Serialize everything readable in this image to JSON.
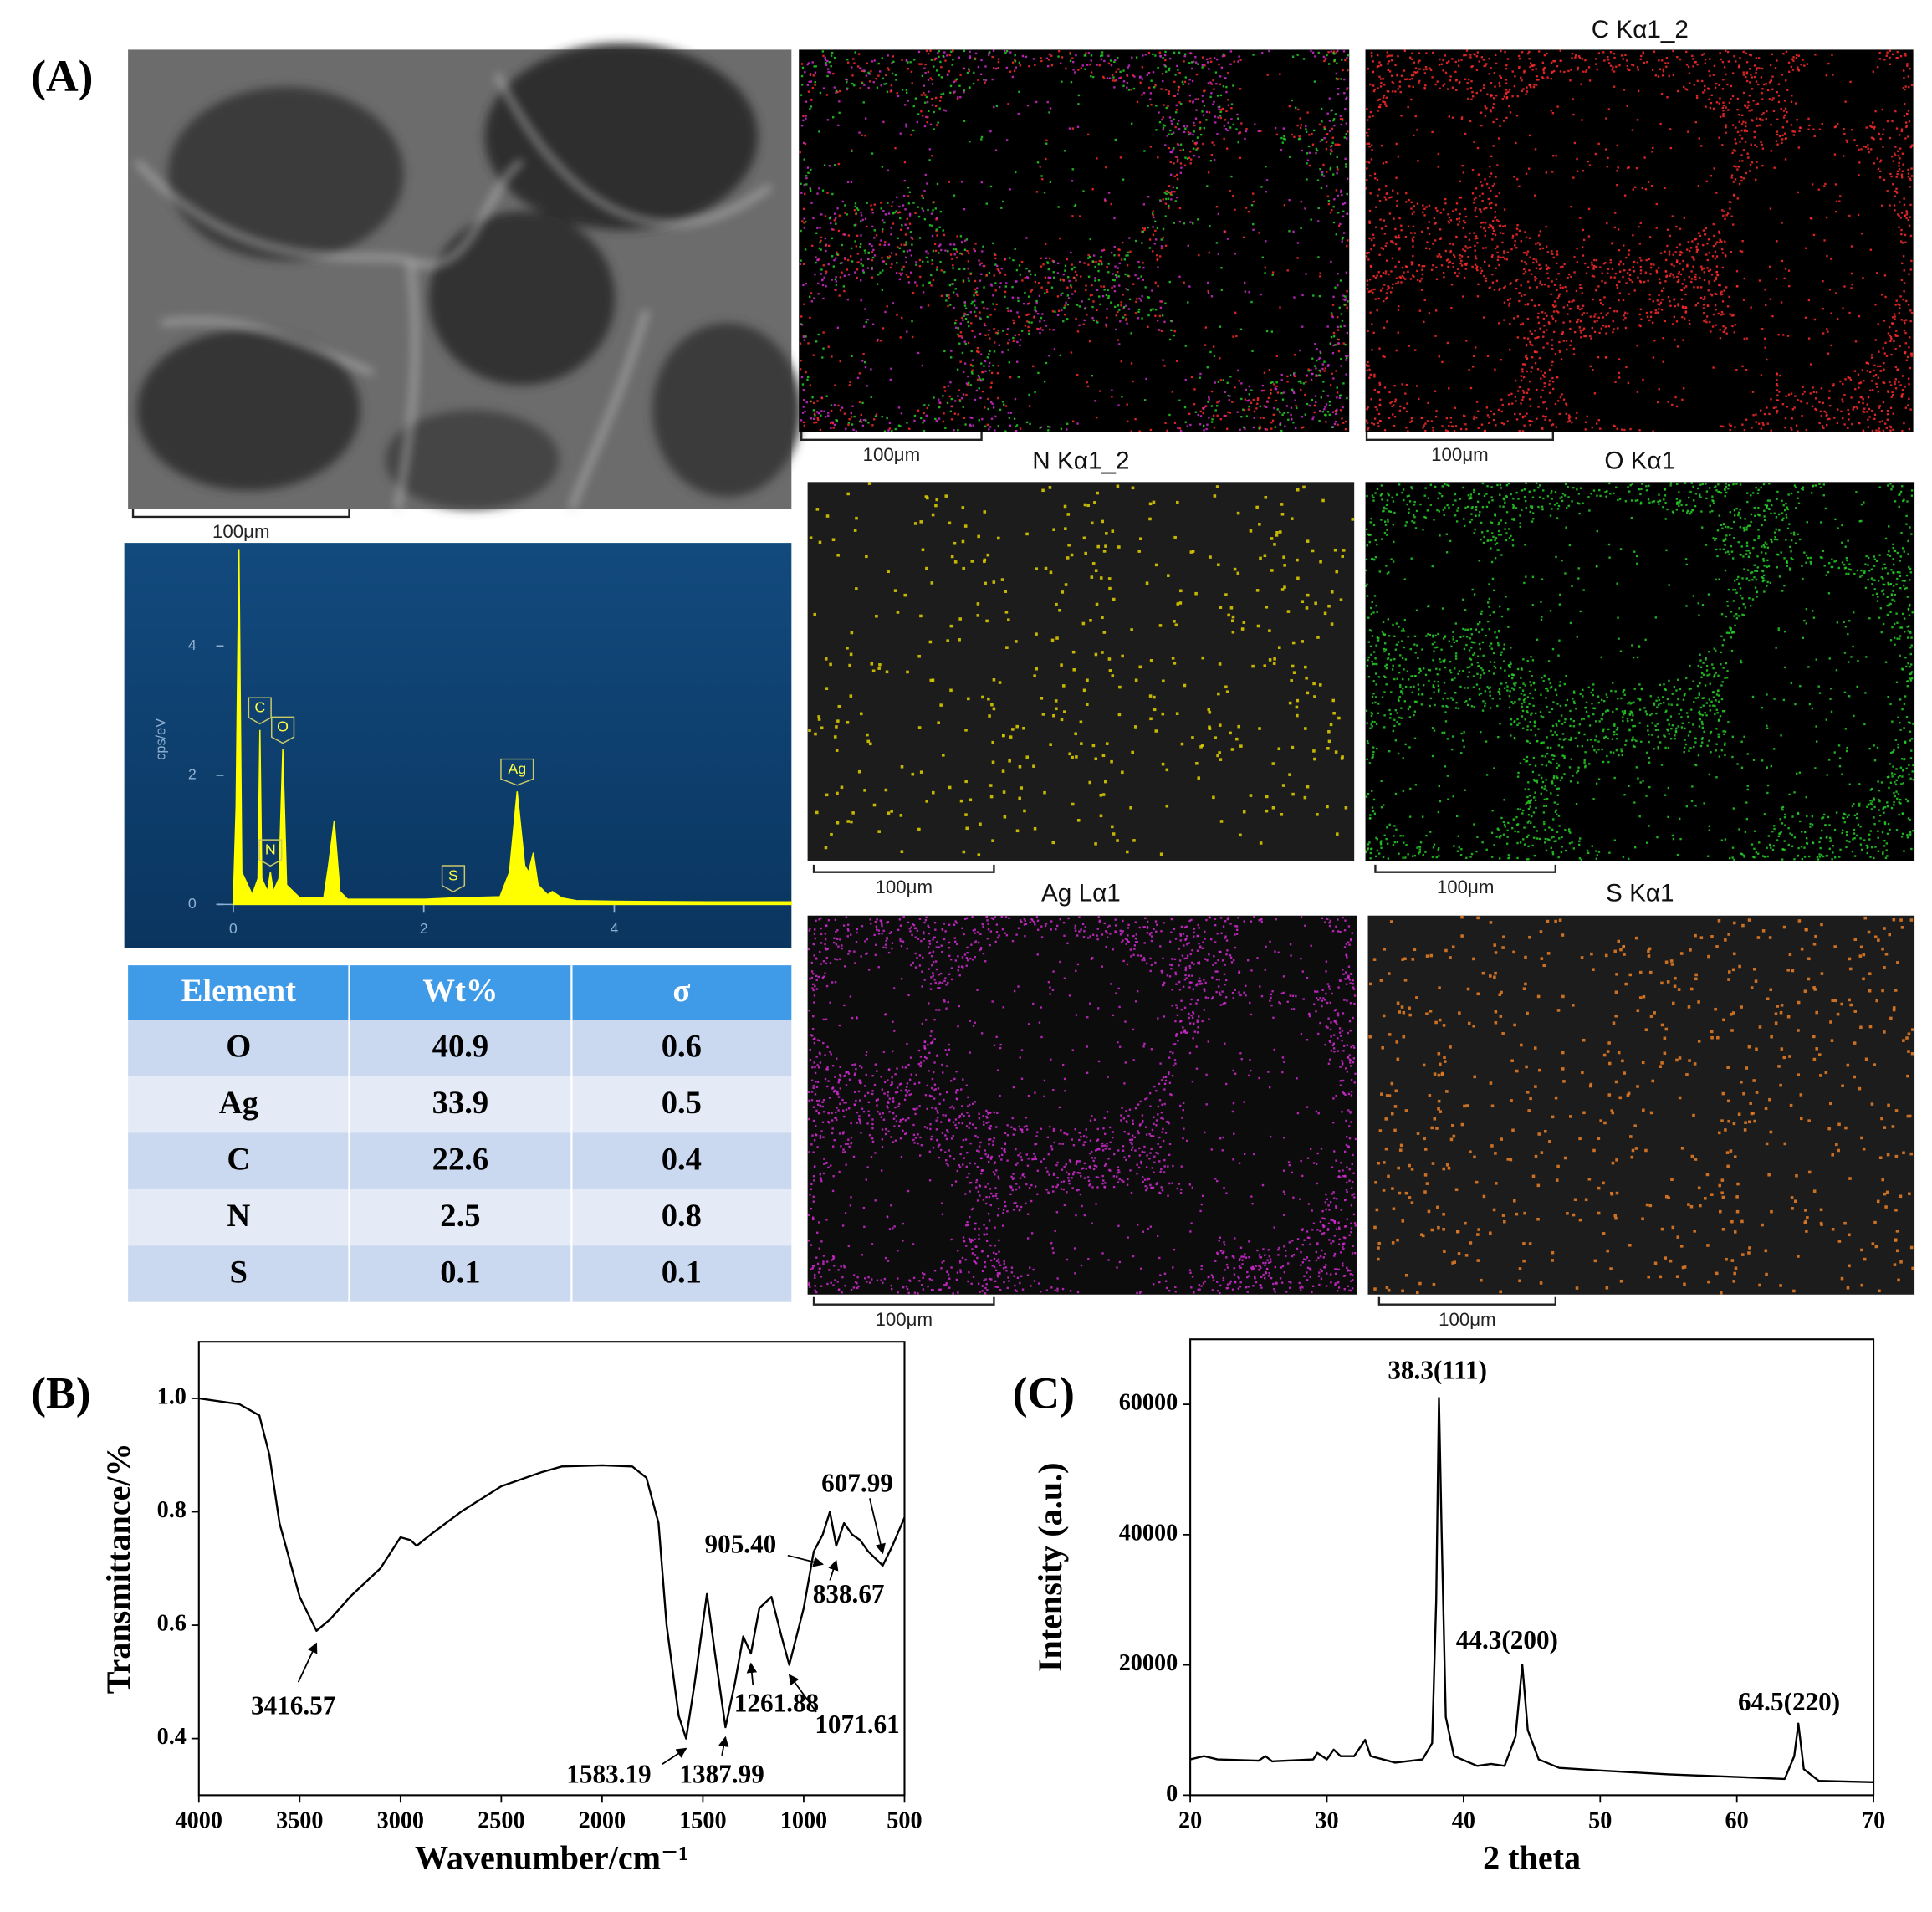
{
  "panel_labels": [
    "(A)",
    "(B)",
    "(C)"
  ],
  "sem": {
    "scale_bar": "100μm"
  },
  "maps": [
    {
      "scale_bar": "100μm"
    },
    {
      "title": "C Kα1_2",
      "color": "#ff2a2a",
      "scale_bar": "100μm"
    },
    {
      "title": "N Kα1_2",
      "color": "#d8c800",
      "scale_bar": "100μm"
    },
    {
      "title": "O Kα1",
      "color": "#26d026",
      "scale_bar": "100μm"
    },
    {
      "title": "Ag Lα1",
      "color": "#d22ad2",
      "scale_bar": "100μm"
    },
    {
      "title": "S Kα1",
      "color": "#e07a26",
      "scale_bar": "100μm"
    }
  ],
  "table": {
    "columns": [
      "Element",
      "Wt%",
      "σ"
    ],
    "rows": [
      [
        "O",
        40.9,
        0.6
      ],
      [
        "Ag",
        33.9,
        0.5
      ],
      [
        "C",
        22.6,
        0.4
      ],
      [
        "N",
        2.5,
        0.8
      ],
      [
        "S",
        0.1,
        0.1
      ]
    ]
  },
  "chart_data": [
    {
      "type": "area",
      "y_label": "cps/eV",
      "x": [
        0,
        0.03,
        0.06,
        0.09,
        0.2,
        0.26,
        0.28,
        0.3,
        0.36,
        0.39,
        0.42,
        0.48,
        0.52,
        0.56,
        0.7,
        0.95,
        1.0,
        1.06,
        1.12,
        1.2,
        2.0,
        2.3,
        2.8,
        2.9,
        2.98,
        3.06,
        3.1,
        3.15,
        3.2,
        3.3,
        3.35,
        3.45,
        3.6,
        4.0,
        5.0,
        5.86
      ],
      "values": [
        0,
        1.5,
        5.5,
        0.5,
        0.15,
        0.4,
        2.7,
        0.4,
        0.2,
        0.5,
        0.2,
        0.4,
        2.4,
        0.3,
        0.1,
        0.1,
        0.6,
        1.3,
        0.2,
        0.08,
        0.08,
        0.1,
        0.12,
        0.5,
        1.75,
        0.6,
        0.5,
        0.8,
        0.3,
        0.15,
        0.2,
        0.1,
        0.06,
        0.05,
        0.04,
        0.04
      ],
      "color": "#ffff00",
      "xlim": [
        -0.1,
        5.86
      ],
      "ylim": [
        0,
        5.5
      ],
      "xticks": [
        0,
        2,
        4
      ],
      "yticks": [
        0,
        2,
        4
      ],
      "peak_labels": [
        {
          "text": "C",
          "x": 0.28
        },
        {
          "text": "O",
          "x": 0.52
        },
        {
          "text": "N",
          "x": 0.39
        },
        {
          "text": "S",
          "x": 2.31
        },
        {
          "text": "Ag",
          "x": 2.98
        }
      ]
    },
    {
      "type": "line",
      "x_label": "Wavenumber/cm⁻¹",
      "y_label": "Transmittance/%",
      "x": [
        4000,
        3800,
        3700,
        3650,
        3600,
        3500,
        3416.57,
        3350,
        3250,
        3100,
        3000,
        2950,
        2920,
        2850,
        2700,
        2500,
        2300,
        2200,
        2000,
        1850,
        1780,
        1720,
        1680,
        1620,
        1583.19,
        1540,
        1480,
        1440,
        1387.99,
        1340,
        1300,
        1261.88,
        1220,
        1160,
        1110,
        1071.61,
        1000,
        950,
        905.4,
        870,
        838.67,
        800,
        760,
        720,
        680,
        607.99,
        560,
        500
      ],
      "values": [
        1.0,
        0.99,
        0.97,
        0.9,
        0.78,
        0.65,
        0.59,
        0.61,
        0.65,
        0.7,
        0.755,
        0.75,
        0.74,
        0.76,
        0.8,
        0.845,
        0.87,
        0.88,
        0.882,
        0.88,
        0.86,
        0.78,
        0.6,
        0.44,
        0.4,
        0.5,
        0.655,
        0.55,
        0.42,
        0.5,
        0.58,
        0.55,
        0.63,
        0.65,
        0.58,
        0.53,
        0.63,
        0.73,
        0.76,
        0.8,
        0.74,
        0.78,
        0.76,
        0.75,
        0.73,
        0.705,
        0.74,
        0.79
      ],
      "color": "#000000",
      "xlim": [
        4000,
        500
      ],
      "ylim": [
        0.3,
        1.1
      ],
      "xticks": [
        4000,
        3500,
        3000,
        2500,
        2000,
        1500,
        1000,
        500
      ],
      "yticks": [
        0.4,
        0.6,
        0.8,
        {
          "value": 1,
          "label": "1.0"
        }
      ],
      "annotations": [
        {
          "text": "3416.57",
          "x": 3416.57
        },
        {
          "text": "1583.19",
          "x": 1583.19
        },
        {
          "text": "1387.99",
          "x": 1387.99
        },
        {
          "text": "1261.88",
          "x": 1261.88
        },
        {
          "text": "1071.61",
          "x": 1071.61
        },
        {
          "text": "905.40",
          "x": 905.4
        },
        {
          "text": "838.67",
          "x": 838.67
        },
        {
          "text": "607.99",
          "x": 607.99
        }
      ]
    },
    {
      "type": "line",
      "x_label": "2 theta",
      "y_label": "Intensity (a.u.)",
      "x": [
        20,
        21,
        22,
        25,
        25.5,
        26,
        29,
        29.3,
        30,
        30.5,
        31,
        32,
        32.8,
        33.2,
        35,
        37,
        37.7,
        38.0,
        38.2,
        38.4,
        38.7,
        39.3,
        41,
        42,
        43,
        43.8,
        44.3,
        44.7,
        45.5,
        47,
        50,
        55,
        60,
        63.5,
        64.2,
        64.5,
        64.9,
        66,
        70
      ],
      "values": [
        5500,
        6000,
        5500,
        5300,
        6000,
        5200,
        5500,
        6500,
        5500,
        7000,
        6000,
        6000,
        8500,
        6000,
        5000,
        5500,
        8000,
        30000,
        61000,
        40000,
        12000,
        6000,
        4500,
        4800,
        4500,
        9000,
        20000,
        10000,
        5500,
        4200,
        3800,
        3200,
        2800,
        2500,
        6000,
        11000,
        4000,
        2200,
        2000
      ],
      "color": "#000000",
      "xlim": [
        20,
        70
      ],
      "ylim": [
        0,
        70000
      ],
      "xticks": [
        20,
        30,
        40,
        50,
        60,
        70
      ],
      "yticks": [
        0,
        20000,
        40000,
        60000
      ],
      "annotations": [
        {
          "text": "38.3(111)",
          "x": 38.3
        },
        {
          "text": "44.3(200)",
          "x": 44.3
        },
        {
          "text": "64.5(220)",
          "x": 64.5
        }
      ]
    }
  ]
}
